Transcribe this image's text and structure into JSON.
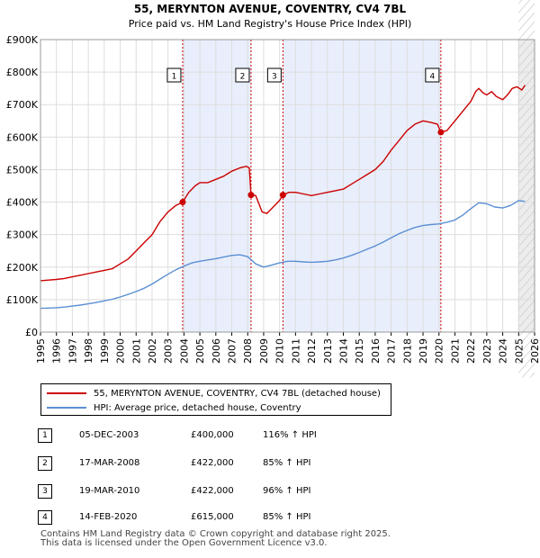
{
  "title": "55, MERYNTON AVENUE, COVENTRY, CV4 7BL",
  "subtitle": "Price paid vs. HM Land Registry's House Price Index (HPI)",
  "chart_data": {
    "type": "line",
    "title": "55, MERYNTON AVENUE, COVENTRY, CV4 7BL",
    "subtitle": "Price paid vs. HM Land Registry's House Price Index (HPI)",
    "xlabel": "",
    "ylabel": "",
    "xlim": [
      1995,
      2026
    ],
    "ylim": [
      0,
      900000
    ],
    "y_ticks": [
      {
        "value": 0,
        "label": "£0"
      },
      {
        "value": 100000,
        "label": "£100K"
      },
      {
        "value": 200000,
        "label": "£200K"
      },
      {
        "value": 300000,
        "label": "£300K"
      },
      {
        "value": 400000,
        "label": "£400K"
      },
      {
        "value": 500000,
        "label": "£500K"
      },
      {
        "value": 600000,
        "label": "£600K"
      },
      {
        "value": 700000,
        "label": "£700K"
      },
      {
        "value": 800000,
        "label": "£800K"
      },
      {
        "value": 900000,
        "label": "£900K"
      }
    ],
    "x_ticks": [
      1995,
      1996,
      1997,
      1998,
      1999,
      2000,
      2001,
      2002,
      2003,
      2004,
      2005,
      2006,
      2007,
      2008,
      2009,
      2010,
      2011,
      2012,
      2013,
      2014,
      2015,
      2016,
      2017,
      2018,
      2019,
      2020,
      2021,
      2022,
      2023,
      2024,
      2025,
      2026
    ],
    "grid": true,
    "shaded_ranges": [
      [
        2003.92,
        2008.21
      ],
      [
        2010.21,
        2020.12
      ]
    ],
    "future_from": 2025.0,
    "series": [
      {
        "name": "55, MERYNTON AVENUE, COVENTRY, CV4 7BL (detached house)",
        "color": "#cc0000",
        "x": [
          1995.0,
          1995.5,
          1996.0,
          1996.5,
          1997.0,
          1997.5,
          1998.0,
          1998.5,
          1999.0,
          1999.5,
          2000.0,
          2000.5,
          2001.0,
          2001.5,
          2002.0,
          2002.5,
          2003.0,
          2003.5,
          2003.92,
          2004.3,
          2004.7,
          2005.0,
          2005.5,
          2006.0,
          2006.5,
          2007.0,
          2007.5,
          2007.9,
          2008.1,
          2008.21,
          2008.5,
          2008.9,
          2009.2,
          2009.6,
          2010.0,
          2010.21,
          2010.6,
          2011.0,
          2011.5,
          2012.0,
          2012.5,
          2013.0,
          2013.5,
          2014.0,
          2014.5,
          2015.0,
          2015.5,
          2016.0,
          2016.5,
          2017.0,
          2017.5,
          2018.0,
          2018.5,
          2019.0,
          2019.5,
          2019.9,
          2020.12,
          2020.5,
          2021.0,
          2021.5,
          2022.0,
          2022.3,
          2022.5,
          2022.8,
          2023.0,
          2023.3,
          2023.6,
          2024.0,
          2024.3,
          2024.6,
          2024.9,
          2025.2,
          2025.4
        ],
        "values": [
          158000,
          160000,
          162000,
          165000,
          170000,
          175000,
          180000,
          185000,
          190000,
          195000,
          210000,
          225000,
          250000,
          275000,
          300000,
          340000,
          370000,
          390000,
          400000,
          430000,
          450000,
          460000,
          460000,
          470000,
          480000,
          495000,
          505000,
          510000,
          505000,
          422000,
          420000,
          370000,
          365000,
          385000,
          405000,
          422000,
          430000,
          430000,
          425000,
          420000,
          425000,
          430000,
          435000,
          440000,
          455000,
          470000,
          485000,
          500000,
          525000,
          560000,
          590000,
          620000,
          640000,
          650000,
          645000,
          640000,
          615000,
          620000,
          650000,
          680000,
          710000,
          740000,
          750000,
          735000,
          730000,
          740000,
          725000,
          715000,
          730000,
          750000,
          755000,
          745000,
          760000
        ]
      },
      {
        "name": "HPI: Average price, detached house, Coventry",
        "color": "#5b8fd4",
        "x": [
          1995.0,
          1995.5,
          1996.0,
          1996.5,
          1997.0,
          1997.5,
          1998.0,
          1998.5,
          1999.0,
          1999.5,
          2000.0,
          2000.5,
          2001.0,
          2001.5,
          2002.0,
          2002.5,
          2003.0,
          2003.5,
          2004.0,
          2004.5,
          2005.0,
          2005.5,
          2006.0,
          2006.5,
          2007.0,
          2007.5,
          2008.0,
          2008.5,
          2009.0,
          2009.5,
          2010.0,
          2010.5,
          2011.0,
          2011.5,
          2012.0,
          2012.5,
          2013.0,
          2013.5,
          2014.0,
          2014.5,
          2015.0,
          2015.5,
          2016.0,
          2016.5,
          2017.0,
          2017.5,
          2018.0,
          2018.5,
          2019.0,
          2019.5,
          2020.0,
          2020.5,
          2021.0,
          2021.5,
          2022.0,
          2022.5,
          2023.0,
          2023.5,
          2024.0,
          2024.5,
          2025.0,
          2025.4
        ],
        "values": [
          73000,
          74000,
          75000,
          77000,
          80000,
          83000,
          87000,
          91000,
          96000,
          101000,
          108000,
          116000,
          125000,
          135000,
          148000,
          163000,
          178000,
          192000,
          203000,
          213000,
          218000,
          222000,
          226000,
          231000,
          236000,
          238000,
          232000,
          210000,
          200000,
          206000,
          213000,
          218000,
          218000,
          216000,
          215000,
          216000,
          218000,
          222000,
          228000,
          236000,
          245000,
          255000,
          265000,
          277000,
          290000,
          303000,
          313000,
          322000,
          328000,
          331000,
          333000,
          338000,
          345000,
          360000,
          380000,
          398000,
          395000,
          385000,
          382000,
          390000,
          405000,
          402000
        ]
      }
    ],
    "sales": [
      {
        "marker": "1",
        "x": 2003.92,
        "value": 400000
      },
      {
        "marker": "2",
        "x": 2008.21,
        "value": 422000
      },
      {
        "marker": "3",
        "x": 2010.21,
        "value": 422000
      },
      {
        "marker": "4",
        "x": 2020.12,
        "value": 615000
      }
    ]
  },
  "legend": {
    "property_label": "55, MERYNTON AVENUE, COVENTRY, CV4 7BL (detached house)",
    "hpi_label": "HPI: Average price, detached house, Coventry",
    "property_color": "#cc0000",
    "hpi_color": "#5b8fd4"
  },
  "sales_table": [
    {
      "marker": "1",
      "date": "05-DEC-2003",
      "price": "£400,000",
      "hpi": "116% ↑ HPI"
    },
    {
      "marker": "2",
      "date": "17-MAR-2008",
      "price": "£422,000",
      "hpi": "85% ↑ HPI"
    },
    {
      "marker": "3",
      "date": "19-MAR-2010",
      "price": "£422,000",
      "hpi": "96% ↑ HPI"
    },
    {
      "marker": "4",
      "date": "14-FEB-2020",
      "price": "£615,000",
      "hpi": "85% ↑ HPI"
    }
  ],
  "footer": {
    "line1": "Contains HM Land Registry data © Crown copyright and database right 2025.",
    "line2": "This data is licensed under the Open Government Licence v3.0."
  }
}
